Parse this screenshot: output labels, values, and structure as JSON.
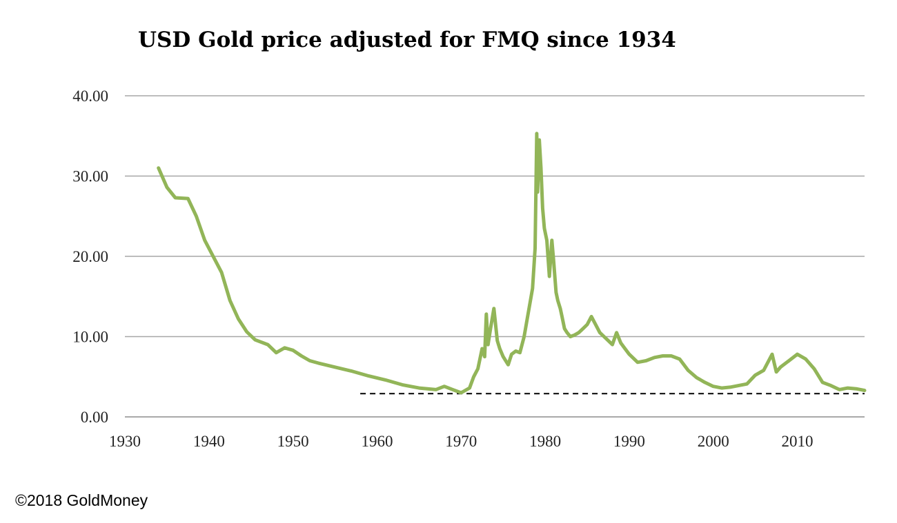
{
  "chart_data": {
    "type": "line",
    "title": "USD Gold price adjusted for FMQ since 1934",
    "xlabel": "",
    "ylabel": "",
    "xlim": [
      1930,
      2018
    ],
    "ylim": [
      0,
      40
    ],
    "x_ticks": [
      1930,
      1940,
      1950,
      1960,
      1970,
      1980,
      1990,
      2000,
      2010
    ],
    "x_tick_labels": [
      "1930",
      "1940",
      "1950",
      "1960",
      "1970",
      "1980",
      "1990",
      "2000",
      "2010"
    ],
    "y_ticks": [
      0,
      10,
      20,
      30,
      40
    ],
    "y_tick_labels": [
      "0.00",
      "10.00",
      "20.00",
      "30.00",
      "40.00"
    ],
    "grid": "horizontal",
    "legend": "none",
    "line_color": "#92b558",
    "reference_line": {
      "y": 2.9,
      "x_start": 1958,
      "x_end": 2018,
      "style": "dashed",
      "color": "#000000"
    },
    "series": [
      {
        "x": [
          1934,
          1935,
          1936,
          1937.5,
          1938.5,
          1939.5,
          1940.5,
          1941.5,
          1942.5,
          1943.5,
          1944.5,
          1945.5,
          1947,
          1948,
          1949,
          1950,
          1951,
          1952,
          1953,
          1955,
          1957,
          1959,
          1961,
          1963,
          1965,
          1967,
          1968,
          1969,
          1970,
          1971,
          1971.5,
          1972,
          1972.5,
          1972.8,
          1973,
          1973.2,
          1973.5,
          1973.9,
          1974.3,
          1974.6,
          1975,
          1975.6,
          1976,
          1976.5,
          1977,
          1977.5,
          1978,
          1978.5,
          1978.8,
          1979,
          1979.1,
          1979.3,
          1979.5,
          1979.7,
          1979.9,
          1980.2,
          1980.5,
          1980.8,
          1981,
          1981.3,
          1981.5,
          1981.8,
          1982,
          1982.3,
          1982.6,
          1983,
          1983.5,
          1984,
          1984.5,
          1985,
          1985.5,
          1986,
          1986.5,
          1987,
          1987.5,
          1988,
          1988.5,
          1989,
          1989.5,
          1990,
          1991,
          1992,
          1993,
          1994,
          1995,
          1996,
          1997,
          1998,
          1999,
          2000,
          2001,
          2002,
          2003,
          2004,
          2005,
          2006,
          2007,
          2007.5,
          2008,
          2009,
          2010,
          2011,
          2012,
          2013,
          2014,
          2015,
          2016,
          2017,
          2018
        ],
        "y": [
          31.0,
          28.6,
          27.3,
          27.2,
          25.0,
          22.0,
          20.0,
          18.0,
          14.5,
          12.2,
          10.6,
          9.6,
          9.0,
          8.0,
          8.6,
          8.3,
          7.6,
          7.0,
          6.7,
          6.2,
          5.7,
          5.1,
          4.6,
          4.0,
          3.6,
          3.4,
          3.8,
          3.4,
          3.0,
          3.6,
          5.0,
          6.0,
          8.5,
          7.5,
          12.8,
          9.0,
          11.0,
          13.5,
          9.5,
          8.5,
          7.5,
          6.5,
          7.8,
          8.2,
          8.0,
          10.0,
          13.0,
          16.0,
          21.0,
          35.3,
          28.0,
          34.5,
          31.0,
          26.0,
          23.5,
          22.0,
          17.5,
          22.0,
          19.5,
          15.5,
          14.5,
          13.5,
          12.5,
          11.0,
          10.5,
          10.0,
          10.2,
          10.5,
          11.0,
          11.5,
          12.5,
          11.5,
          10.5,
          10.0,
          9.5,
          9.0,
          10.5,
          9.2,
          8.5,
          7.8,
          6.8,
          7.0,
          7.4,
          7.6,
          7.6,
          7.2,
          5.8,
          4.9,
          4.3,
          3.8,
          3.6,
          3.7,
          3.9,
          4.1,
          5.2,
          5.8,
          7.8,
          5.6,
          6.2,
          7.0,
          7.8,
          7.2,
          6.0,
          4.3,
          3.9,
          3.4,
          3.6,
          3.5,
          3.3
        ]
      }
    ]
  },
  "footer": {
    "copyright": "©2018 GoldMoney"
  }
}
